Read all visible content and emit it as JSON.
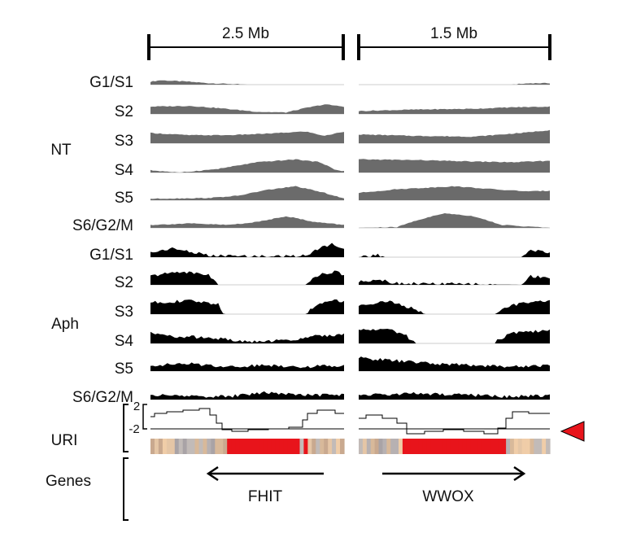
{
  "scale": {
    "left": "2.5 Mb",
    "right": "1.5 Mb"
  },
  "conditions": [
    {
      "name": "NT",
      "color": "#6b6b6b",
      "phases": [
        "G1/S1",
        "S2",
        "S3",
        "S4",
        "S5",
        "S6/G2/M"
      ]
    },
    {
      "name": "Aph",
      "color": "#000000",
      "phases": [
        "G1/S1",
        "S2",
        "S3",
        "S4",
        "S5",
        "S6/G2/M"
      ]
    }
  ],
  "uri": {
    "label": "URI",
    "tick_high": "2",
    "tick_low": "-2",
    "marker_color": "#e8141b"
  },
  "genes": {
    "label": "Genes",
    "left_gene": "FHIT",
    "left_direction": "left",
    "right_gene": "WWOX",
    "right_direction": "right"
  }
}
